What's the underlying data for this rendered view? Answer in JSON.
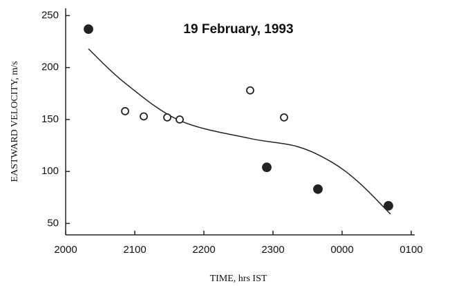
{
  "chart_data": {
    "type": "scatter",
    "title": "19 February, 1993",
    "xlabel": "TIME, hrs IST",
    "ylabel": "EASTWARD VELOCITY, m/s",
    "xlim": [
      20,
      25
    ],
    "ylim": [
      39,
      257
    ],
    "xticks": [
      {
        "value": 20,
        "label": "2000"
      },
      {
        "value": 21,
        "label": "2100"
      },
      {
        "value": 22,
        "label": "2200"
      },
      {
        "value": 23,
        "label": "2300"
      },
      {
        "value": 24,
        "label": "0000"
      },
      {
        "value": 25,
        "label": "0100"
      }
    ],
    "yticks": [
      50,
      100,
      150,
      200,
      250
    ],
    "series": [
      {
        "marker": "filled",
        "color": "#222",
        "x": [
          20.33,
          22.91,
          23.65,
          24.67
        ],
        "values": [
          237,
          104,
          83,
          67
        ]
      },
      {
        "marker": "open",
        "color": "#222",
        "x": [
          20.86,
          21.13,
          21.47,
          21.65,
          22.67,
          23.16
        ],
        "values": [
          158,
          153,
          152,
          150,
          178,
          152
        ]
      }
    ],
    "fit": {
      "color": "#222",
      "x": [
        20.33,
        20.86,
        21.65,
        22.65,
        23.35,
        23.85,
        24.25,
        24.7
      ],
      "values": [
        218,
        185,
        149,
        132,
        124,
        109,
        89,
        59
      ]
    }
  }
}
